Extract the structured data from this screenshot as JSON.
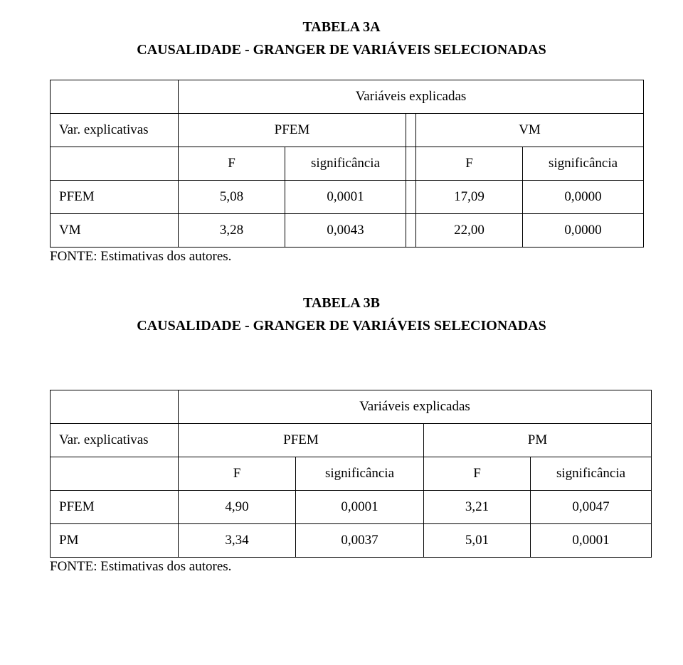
{
  "tableA": {
    "caption_line1": "TABELA 3A",
    "caption_line2": "CAUSALIDADE - GRANGER DE VARIÁVEIS SELECIONADAS",
    "header_group": "Variáveis explicadas",
    "row_var_label": "Var. explicativas",
    "group1_label": "PFEM",
    "group2_label": "VM",
    "sub_F": "F",
    "sub_sig": "significância",
    "rows": [
      {
        "label": " PFEM",
        "f1": "5,08",
        "s1": "0,0001",
        "f2": "17,09",
        "s2": "0,0000"
      },
      {
        "label": "VM",
        "f1": "3,28",
        "s1": "0,0043",
        "f2": "22,00",
        "s2": "0,0000"
      }
    ],
    "source_note": "FONTE: Estimativas dos autores."
  },
  "tableB": {
    "caption_line1": "TABELA 3B",
    "caption_line2": "CAUSALIDADE - GRANGER DE VARIÁVEIS SELECIONADAS",
    "header_group": "Variáveis explicadas",
    "row_var_label": "Var. explicativas",
    "group1_label": "PFEM",
    "group2_label": "PM",
    "sub_F": "F",
    "sub_sig": "significância",
    "rows": [
      {
        "label": " PFEM",
        "f1": "4,90",
        "s1": "0,0001",
        "f2": "3,21",
        "s2": "0,0047"
      },
      {
        "label": "PM",
        "f1": "3,34",
        "s1": "0,0037",
        "f2": "5,01",
        "s2": "0,0001"
      }
    ],
    "source_note": "FONTE: Estimativas dos autores."
  },
  "colors": {
    "border": "#000000",
    "background": "#ffffff",
    "text": "#000000"
  },
  "typography": {
    "family": "Times New Roman",
    "title_size_pt": 15,
    "body_size_pt": 14,
    "title_weight": "bold"
  }
}
